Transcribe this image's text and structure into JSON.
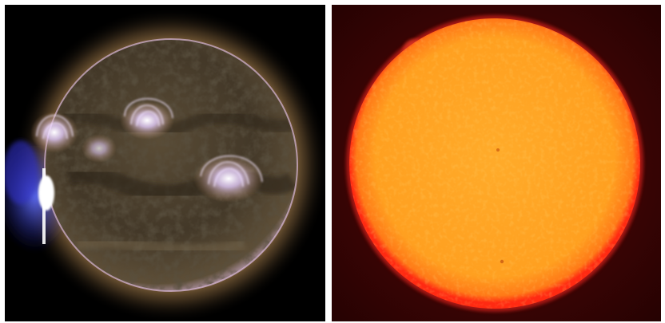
{
  "figure": {
    "panels": [
      {
        "id": "left",
        "subject": "sun-euv-composite",
        "colors": {
          "background": "#000000",
          "disk": "#4b4030",
          "corona": "#c8a060",
          "loops": "#f0e0ff",
          "flare": "#ffffff",
          "ejecta": "#3a40ff"
        }
      },
      {
        "id": "right",
        "subject": "sun-h-alpha",
        "colors": {
          "background": "#3a0404",
          "disk": "#ffa221",
          "limb": "#ff2a10",
          "prominence": "#d43020"
        }
      }
    ]
  }
}
